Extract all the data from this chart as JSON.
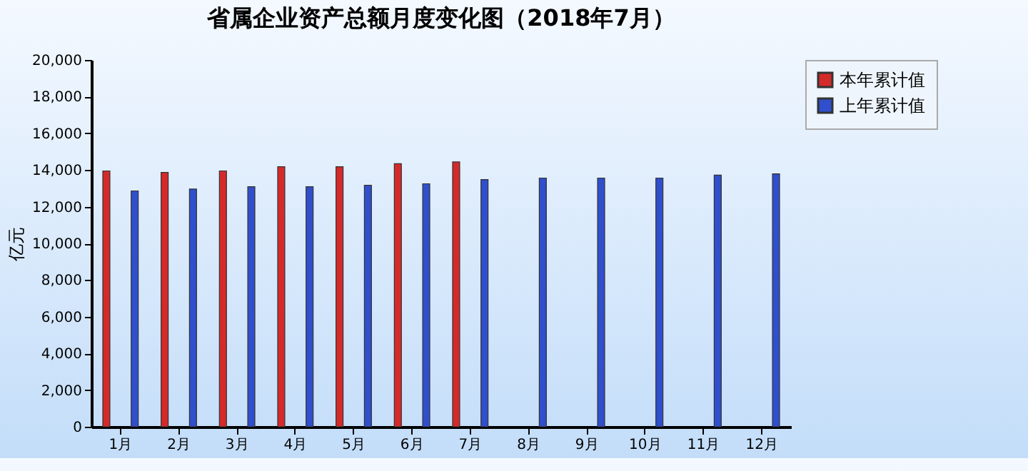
{
  "chart_data": {
    "type": "bar",
    "title": "省属企业资产总额月度变化图（2018年7月）",
    "ylabel": "亿元",
    "categories": [
      "1月",
      "2月",
      "3月",
      "4月",
      "5月",
      "6月",
      "7月",
      "8月",
      "9月",
      "10月",
      "11月",
      "12月"
    ],
    "series": [
      {
        "name": "本年累计值",
        "color": "#d42a2a",
        "values": [
          13950,
          13870,
          13950,
          14180,
          14180,
          14340,
          14440,
          null,
          null,
          null,
          null,
          null
        ]
      },
      {
        "name": "上年累计值",
        "color": "#2f4fcc",
        "values": [
          12860,
          12960,
          13090,
          13090,
          13170,
          13250,
          13480,
          13560,
          13560,
          13560,
          13720,
          13790
        ]
      }
    ],
    "ylim": [
      0,
      20000
    ],
    "yticks": [
      0,
      {
        "value": 2000,
        "label": "2,000"
      },
      {
        "value": 4000,
        "label": "4,000"
      },
      {
        "value": 6000,
        "label": "6,000"
      },
      {
        "value": 8000,
        "label": "8,000"
      },
      {
        "value": 10000,
        "label": "10,000"
      },
      {
        "value": 12000,
        "label": "12,000"
      },
      {
        "value": 14000,
        "label": "14,000"
      },
      {
        "value": 16000,
        "label": "16,000"
      },
      {
        "value": 18000,
        "label": "18,000"
      },
      {
        "value": 20000,
        "label": "20,000"
      }
    ],
    "grid": false,
    "legend": "right"
  }
}
